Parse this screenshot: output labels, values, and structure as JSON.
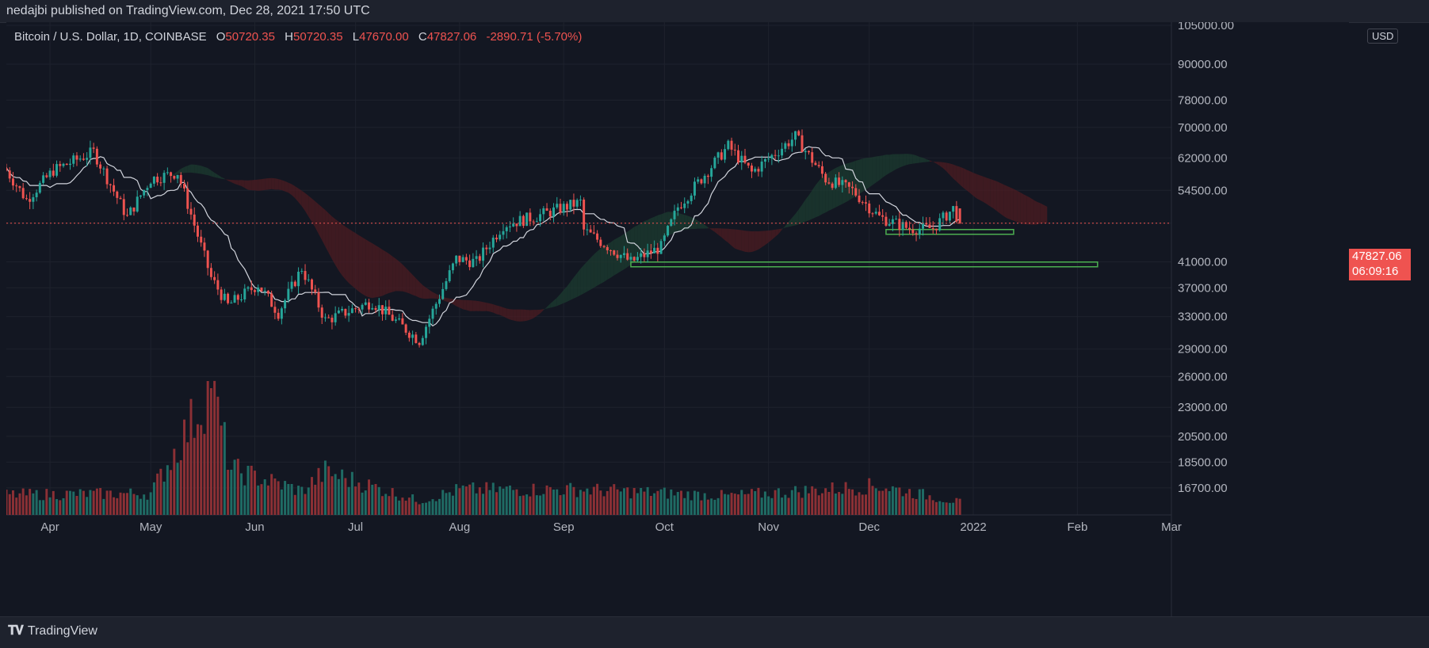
{
  "header": {
    "publish_text": "nedajbi published on TradingView.com, Dec 28, 2021 17:50 UTC"
  },
  "legend": {
    "symbol": "Bitcoin / U.S. Dollar, 1D, COINBASE",
    "o_label": "O",
    "o_value": "50720.35",
    "h_label": "H",
    "h_value": "50720.35",
    "l_label": "L",
    "l_value": "47670.00",
    "c_label": "C",
    "c_value": "47827.06",
    "change": "-2890.71 (-5.70%)"
  },
  "currency": "USD",
  "price_tag": {
    "price": "47827.06",
    "countdown": "06:09:16"
  },
  "footer": {
    "logo_text": "TradingView"
  },
  "colors": {
    "background": "#131722",
    "up": "#26a69a",
    "down": "#ef5350",
    "cloud_bull": "#1b3a30",
    "cloud_bear": "#4a1c22",
    "baseline": "#d1d4dc",
    "support": "#4caf50"
  },
  "chart_data": {
    "type": "candlestick",
    "symbol": "BTCUSD",
    "exchange": "COINBASE",
    "interval": "1D",
    "y_scale": "log",
    "ylim": [
      15000,
      105000
    ],
    "y_ticks": [
      "105000.00",
      "90000.00",
      "78000.00",
      "70000.00",
      "62000.00",
      "54500.00",
      "47827.06",
      "41000.00",
      "37000.00",
      "33000.00",
      "29000.00",
      "26000.00",
      "23000.00",
      "20500.00",
      "18500.00",
      "16700.00"
    ],
    "x_range": [
      "2021-03-19",
      "2022-03-01"
    ],
    "x_ticks": [
      "Apr",
      "May",
      "Jun",
      "Jul",
      "Aug",
      "Sep",
      "Oct",
      "Nov",
      "Dec",
      "2022",
      "Feb",
      "Mar"
    ],
    "last_close": 47827.06,
    "support_levels": [
      {
        "price": 46200,
        "start": "2021-12-06",
        "end": "2022-01-13"
      },
      {
        "price": 40600,
        "start": "2021-09-21",
        "end": "2022-02-07"
      }
    ],
    "price_anchors": [
      {
        "date": "2021-03-19",
        "price": 59000
      },
      {
        "date": "2021-03-25",
        "price": 52500
      },
      {
        "date": "2021-04-02",
        "price": 59000
      },
      {
        "date": "2021-04-14",
        "price": 63500
      },
      {
        "date": "2021-04-24",
        "price": 49000
      },
      {
        "date": "2021-05-01",
        "price": 57000
      },
      {
        "date": "2021-05-09",
        "price": 58500
      },
      {
        "date": "2021-05-13",
        "price": 49500
      },
      {
        "date": "2021-05-19",
        "price": 38500
      },
      {
        "date": "2021-05-24",
        "price": 34500
      },
      {
        "date": "2021-06-02",
        "price": 37500
      },
      {
        "date": "2021-06-08",
        "price": 33500
      },
      {
        "date": "2021-06-15",
        "price": 40000
      },
      {
        "date": "2021-06-22",
        "price": 32500
      },
      {
        "date": "2021-07-06",
        "price": 35000
      },
      {
        "date": "2021-07-20",
        "price": 30000
      },
      {
        "date": "2021-07-31",
        "price": 41500
      },
      {
        "date": "2021-08-06",
        "price": 41000
      },
      {
        "date": "2021-08-14",
        "price": 47500
      },
      {
        "date": "2021-08-23",
        "price": 49000
      },
      {
        "date": "2021-09-06",
        "price": 52000
      },
      {
        "date": "2021-09-07",
        "price": 46500
      },
      {
        "date": "2021-09-21",
        "price": 41000
      },
      {
        "date": "2021-09-30",
        "price": 43500
      },
      {
        "date": "2021-10-05",
        "price": 51000
      },
      {
        "date": "2021-10-20",
        "price": 65000
      },
      {
        "date": "2021-10-27",
        "price": 58500
      },
      {
        "date": "2021-11-09",
        "price": 67500
      },
      {
        "date": "2021-11-18",
        "price": 57000
      },
      {
        "date": "2021-11-26",
        "price": 54500
      },
      {
        "date": "2021-12-04",
        "price": 49000
      },
      {
        "date": "2021-12-13",
        "price": 46800
      },
      {
        "date": "2021-12-20",
        "price": 46900
      },
      {
        "date": "2021-12-26",
        "price": 50700
      },
      {
        "date": "2021-12-28",
        "price": 47827
      }
    ],
    "volume_ylim": [
      0,
      50000
    ],
    "volume_anchors": [
      {
        "date": "2021-03-19",
        "value": 8000
      },
      {
        "date": "2021-05-01",
        "value": 8500
      },
      {
        "date": "2021-05-19",
        "value": 50000
      },
      {
        "date": "2021-05-25",
        "value": 18000
      },
      {
        "date": "2021-06-15",
        "value": 9500
      },
      {
        "date": "2021-06-22",
        "value": 17000
      },
      {
        "date": "2021-07-20",
        "value": 5500
      },
      {
        "date": "2021-08-01",
        "value": 10000
      },
      {
        "date": "2021-09-07",
        "value": 10000
      },
      {
        "date": "2021-10-20",
        "value": 7500
      },
      {
        "date": "2021-12-04",
        "value": 11500
      },
      {
        "date": "2021-12-28",
        "value": 5000
      }
    ]
  }
}
